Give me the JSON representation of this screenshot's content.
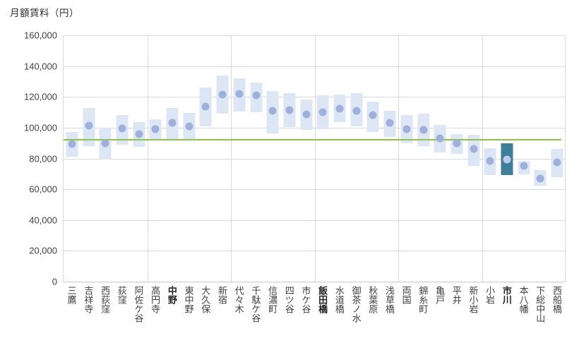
{
  "chart_data": {
    "type": "bar",
    "subtype": "floating-range-bars-with-median-dots",
    "title": "月額賃料（円）",
    "xlabel": "",
    "ylabel": "月額賃料（円）",
    "ylim": [
      0,
      160000
    ],
    "ytick_step": 20000,
    "ytick_labels": [
      "0",
      "20,000",
      "40,000",
      "60,000",
      "80,000",
      "100,000",
      "120,000",
      "140,000",
      "160,000"
    ],
    "x_gridline_every": 5,
    "grid": "horizontal-and-vertical-section-lines",
    "legend": "none",
    "categories": [
      "三鷹",
      "吉祥寺",
      "西荻窪",
      "荻窪",
      "阿佐ケ谷",
      "高円寺",
      "中野",
      "東中野",
      "大久保",
      "新宿",
      "代々木",
      "千駄ケ谷",
      "信濃町",
      "四ツ谷",
      "市ケ谷",
      "飯田橋",
      "水道橋",
      "御茶ノ水",
      "秋葉原",
      "浅草橋",
      "両国",
      "錦糸町",
      "亀戸",
      "平井",
      "新小岩",
      "小岩",
      "市川",
      "本八幡",
      "下総中山",
      "西船橋"
    ],
    "series": [
      {
        "name": "賃料下限",
        "values": [
          81000,
          88000,
          79500,
          89000,
          87500,
          91500,
          91500,
          92000,
          101000,
          109000,
          110500,
          110000,
          96500,
          100500,
          98500,
          99000,
          103500,
          101000,
          97000,
          94000,
          90000,
          88000,
          84000,
          83000,
          75000,
          69000,
          69000,
          69500,
          62500,
          68000
        ]
      },
      {
        "name": "賃料中央値",
        "values": [
          89500,
          101500,
          90000,
          99500,
          96000,
          99000,
          103000,
          101000,
          113500,
          121500,
          122000,
          121000,
          111000,
          111500,
          108500,
          110000,
          112500,
          111000,
          108000,
          103000,
          99000,
          98500,
          93000,
          90000,
          86000,
          78500,
          79500,
          75000,
          67000,
          77500
        ]
      },
      {
        "name": "賃料上限",
        "values": [
          97000,
          113000,
          100000,
          108000,
          103500,
          105500,
          113000,
          109500,
          126000,
          134000,
          132000,
          129500,
          124000,
          122500,
          118500,
          121000,
          121500,
          122500,
          117000,
          111000,
          108000,
          109000,
          102000,
          96000,
          95500,
          86500,
          90000,
          78500,
          72500,
          86000
        ]
      }
    ],
    "reference_line": {
      "value": 92000
    },
    "highlight_category": "市川",
    "bold_categories": [
      "中野",
      "飯田橋",
      "市川"
    ]
  },
  "colors": {
    "background": "#ffffff",
    "bar_fill": "#dce6f4",
    "bar_highlight_fill": "#3d7f9b",
    "dot_fill": "#9fb1da",
    "dot_on_highlight_fill": "#bdc9e8",
    "reference_line": "#8dc63f",
    "gridline": "#d9d9d9",
    "axis_text": "#404040",
    "title_text": "#333333"
  }
}
